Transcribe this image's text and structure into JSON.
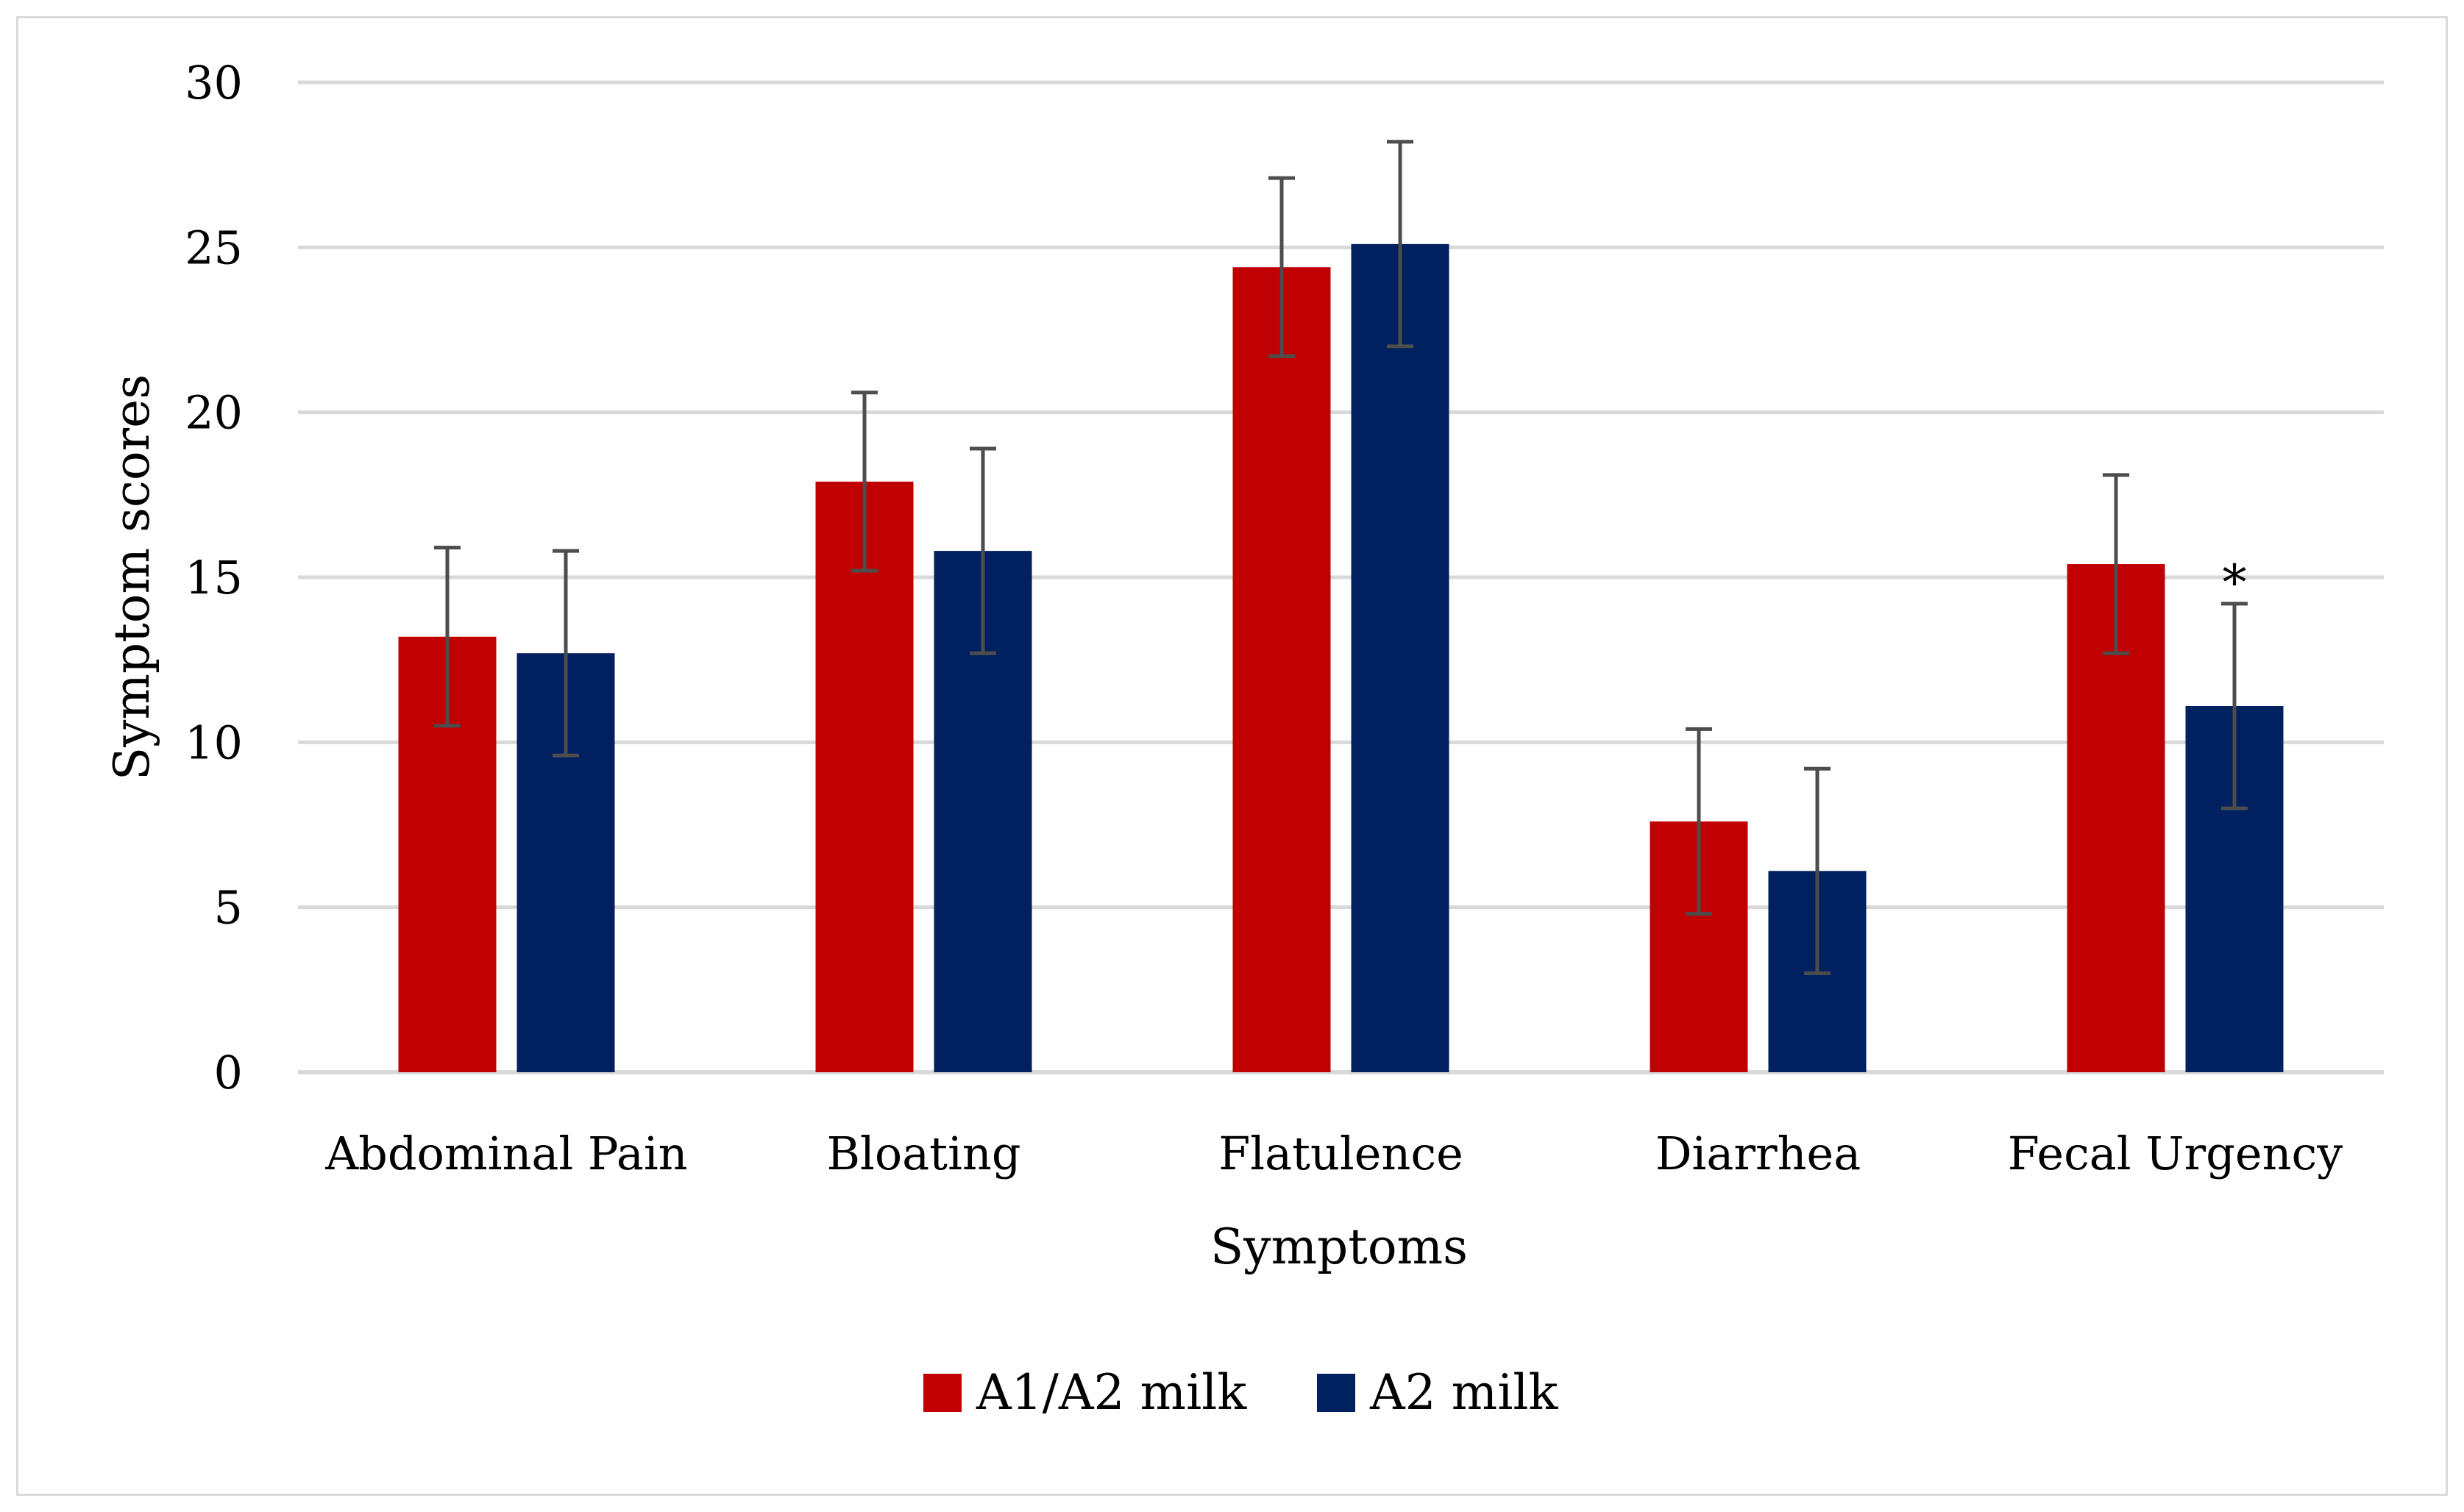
{
  "chart_data": {
    "type": "bar",
    "title": "",
    "xlabel": "Symptoms",
    "ylabel": "Symptom scores",
    "ylim": [
      0,
      30
    ],
    "yticks": [
      0,
      5,
      10,
      15,
      20,
      25,
      30
    ],
    "grid": true,
    "legend_position": "bottom-center",
    "categories": [
      "Abdominal Pain",
      "Bloating",
      "Flatulence",
      "Diarrhea",
      "Fecal Urgency"
    ],
    "series": [
      {
        "name": "A1/A2 milk",
        "color": "#c00000",
        "values": [
          13.2,
          17.9,
          24.4,
          7.6,
          15.4
        ],
        "error": [
          2.7,
          2.7,
          2.7,
          2.8,
          2.7
        ]
      },
      {
        "name": "A2 milk",
        "color": "#002060",
        "values": [
          12.7,
          15.8,
          25.1,
          6.1,
          11.1
        ],
        "error": [
          3.1,
          3.1,
          3.1,
          3.1,
          3.1
        ]
      }
    ],
    "annotations": [
      {
        "text": "*",
        "category": "Fecal Urgency",
        "series": "A2 milk"
      }
    ]
  }
}
